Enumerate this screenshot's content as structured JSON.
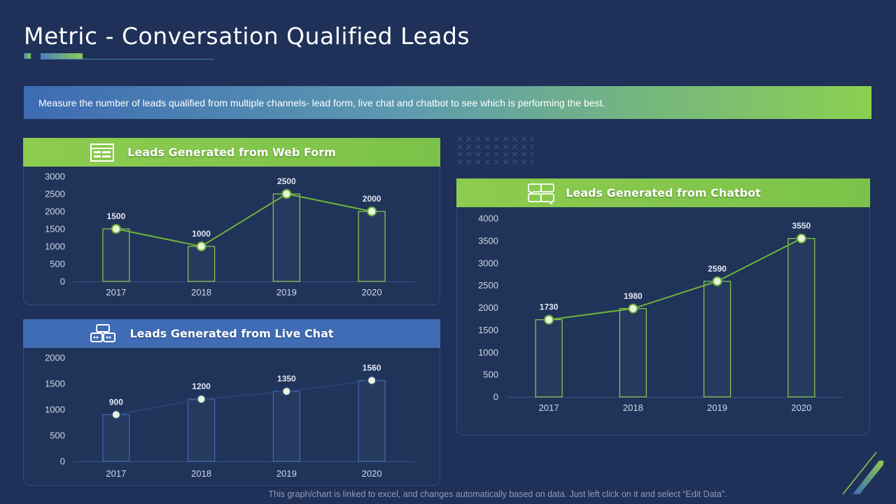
{
  "slide": {
    "title": "Metric - Conversation Qualified Leads",
    "banner_text": "Measure the number of leads qualified from multiple channels- lead form, live chat and chatbot to see which is performing the best.",
    "footer_note": "This graph/chart is linked to excel,  and changes automatically based on data. Just left click on it and select “Edit Data”."
  },
  "colors": {
    "background": "#1f3158",
    "green_accent": "#8ccc4f",
    "blue_accent": "#3f6cb5",
    "bar_fill": "#253a5e",
    "green_line": "#6fb23a"
  },
  "panels": {
    "web_form": {
      "title": "Leads Generated from Web Form",
      "icon": "web-form-icon"
    },
    "live_chat": {
      "title": "Leads Generated from Live Chat",
      "icon": "live-chat-icon"
    },
    "chatbot": {
      "title": "Leads Generated from Chatbot",
      "icon": "chatbot-icon"
    }
  },
  "chart_data": [
    {
      "id": "web_form",
      "type": "bar",
      "title": "Leads Generated from Web Form",
      "categories": [
        "2017",
        "2018",
        "2019",
        "2020"
      ],
      "values": [
        1500,
        1000,
        2500,
        2000
      ],
      "data_labels": [
        "1500",
        "1000",
        "2500",
        "2000"
      ],
      "ylim": [
        0,
        3000
      ],
      "yticks": [
        "0",
        "500",
        "1000",
        "1500",
        "2000",
        "2500",
        "3000"
      ],
      "line_overlay": true,
      "bar_stroke": "#8ccc4f",
      "line_color": "#6fb23a",
      "grid": false
    },
    {
      "id": "live_chat",
      "type": "bar",
      "title": "Leads Generated from Live Chat",
      "categories": [
        "2017",
        "2018",
        "2019",
        "2020"
      ],
      "values": [
        900,
        1200,
        1350,
        1560
      ],
      "data_labels": [
        "900",
        "1200",
        "1350",
        "1560"
      ],
      "ylim": [
        0,
        2000
      ],
      "yticks": [
        "0",
        "500",
        "1000",
        "1500",
        "2000"
      ],
      "line_overlay": true,
      "bar_stroke": "#3f6cb5",
      "line_color": "#2a4272",
      "grid": false
    },
    {
      "id": "chatbot",
      "type": "bar",
      "title": "Leads Generated from Chatbot",
      "categories": [
        "2017",
        "2018",
        "2019",
        "2020"
      ],
      "values": [
        1730,
        1980,
        2590,
        3550
      ],
      "data_labels": [
        "1730",
        "1980",
        "2590",
        "3550"
      ],
      "ylim": [
        0,
        4000
      ],
      "yticks": [
        "0",
        "500",
        "1000",
        "1500",
        "2000",
        "2500",
        "3000",
        "3500",
        "4000"
      ],
      "line_overlay": true,
      "bar_stroke": "#8ccc4f",
      "line_color": "#6fb23a",
      "grid": false
    }
  ]
}
